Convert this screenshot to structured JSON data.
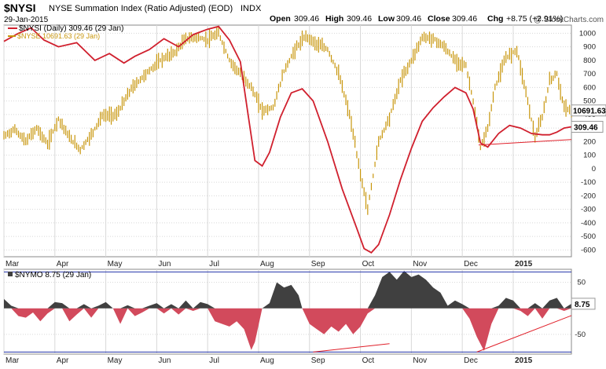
{
  "header": {
    "symbol": "$NYSI",
    "title": "NYSE Summation Index (Ratio Adjusted) (EOD)",
    "exchange": "INDX",
    "date": "29-Jan-2015",
    "watermark": "@ StockCharts.com",
    "quote": {
      "open_label": "Open",
      "open": "309.46",
      "high_label": "High",
      "high": "309.46",
      "low_label": "Low",
      "low": "309.46",
      "close_label": "Close",
      "close": "309.46",
      "chg_label": "Chg",
      "chg": "+8.75 (+2.91%)"
    }
  },
  "colors": {
    "nysi_line": "#d0202e",
    "nyse_bars": "#c8960c",
    "trendline": "#e0202a",
    "nymo_negative": "#d24a5c",
    "nymo_positive": "#404040",
    "band_line": "#2233aa",
    "grid": "#d8d8d8",
    "axis_text": "#222222"
  },
  "chart_data": [
    {
      "type": "line",
      "panel": "main",
      "legend": [
        {
          "label": "$NYSI (Daily) 309.46 (29 Jan)",
          "color": "#d0202e"
        },
        {
          "label": "$NYSE 10691.63 (29 Jan)",
          "color": "#c8960c"
        }
      ],
      "x_categories": [
        "Mar",
        "Apr",
        "May",
        "Jun",
        "Jul",
        "Aug",
        "Sep",
        "Oct",
        "Nov",
        "Dec",
        "2015"
      ],
      "y_ticks": [
        -600,
        -500,
        -400,
        -300,
        -200,
        -100,
        0,
        100,
        200,
        300,
        400,
        500,
        600,
        700,
        800,
        900,
        1000
      ],
      "ylim": [
        -650,
        1060
      ],
      "price_label": "10691.63",
      "price_label_value": 430,
      "value_label": "309.46",
      "value_label_value": 309.46,
      "nysi": [
        {
          "x": 0,
          "y": 940
        },
        {
          "x": 8,
          "y": 1000
        },
        {
          "x": 15,
          "y": 1040
        },
        {
          "x": 22,
          "y": 950
        },
        {
          "x": 30,
          "y": 900
        },
        {
          "x": 40,
          "y": 930
        },
        {
          "x": 50,
          "y": 800
        },
        {
          "x": 58,
          "y": 850
        },
        {
          "x": 66,
          "y": 780
        },
        {
          "x": 72,
          "y": 830
        },
        {
          "x": 80,
          "y": 880
        },
        {
          "x": 88,
          "y": 960
        },
        {
          "x": 96,
          "y": 900
        },
        {
          "x": 104,
          "y": 990
        },
        {
          "x": 112,
          "y": 1030
        },
        {
          "x": 118,
          "y": 1050
        },
        {
          "x": 124,
          "y": 950
        },
        {
          "x": 130,
          "y": 790
        },
        {
          "x": 134,
          "y": 420
        },
        {
          "x": 138,
          "y": 60
        },
        {
          "x": 142,
          "y": 20
        },
        {
          "x": 146,
          "y": 120
        },
        {
          "x": 152,
          "y": 380
        },
        {
          "x": 158,
          "y": 560
        },
        {
          "x": 164,
          "y": 590
        },
        {
          "x": 170,
          "y": 500
        },
        {
          "x": 178,
          "y": 200
        },
        {
          "x": 186,
          "y": -150
        },
        {
          "x": 194,
          "y": -440
        },
        {
          "x": 198,
          "y": -590
        },
        {
          "x": 202,
          "y": -620
        },
        {
          "x": 206,
          "y": -560
        },
        {
          "x": 212,
          "y": -340
        },
        {
          "x": 218,
          "y": -80
        },
        {
          "x": 224,
          "y": 150
        },
        {
          "x": 230,
          "y": 350
        },
        {
          "x": 236,
          "y": 450
        },
        {
          "x": 242,
          "y": 530
        },
        {
          "x": 248,
          "y": 600
        },
        {
          "x": 254,
          "y": 560
        },
        {
          "x": 258,
          "y": 440
        },
        {
          "x": 262,
          "y": 190
        },
        {
          "x": 266,
          "y": 160
        },
        {
          "x": 272,
          "y": 260
        },
        {
          "x": 278,
          "y": 320
        },
        {
          "x": 284,
          "y": 300
        },
        {
          "x": 290,
          "y": 260
        },
        {
          "x": 296,
          "y": 250
        },
        {
          "x": 300,
          "y": 250
        },
        {
          "x": 304,
          "y": 270
        },
        {
          "x": 308,
          "y": 300
        },
        {
          "x": 312,
          "y": 309.46
        }
      ],
      "nyse_trend": [
        {
          "x": 0,
          "y": 240
        },
        {
          "x": 6,
          "y": 290
        },
        {
          "x": 12,
          "y": 200
        },
        {
          "x": 18,
          "y": 300
        },
        {
          "x": 24,
          "y": 180
        },
        {
          "x": 30,
          "y": 370
        },
        {
          "x": 36,
          "y": 230
        },
        {
          "x": 42,
          "y": 140
        },
        {
          "x": 48,
          "y": 250
        },
        {
          "x": 54,
          "y": 390
        },
        {
          "x": 62,
          "y": 400
        },
        {
          "x": 70,
          "y": 590
        },
        {
          "x": 78,
          "y": 700
        },
        {
          "x": 86,
          "y": 800
        },
        {
          "x": 94,
          "y": 860
        },
        {
          "x": 100,
          "y": 960
        },
        {
          "x": 106,
          "y": 970
        },
        {
          "x": 112,
          "y": 950
        },
        {
          "x": 118,
          "y": 1000
        },
        {
          "x": 124,
          "y": 800
        },
        {
          "x": 130,
          "y": 700
        },
        {
          "x": 136,
          "y": 600
        },
        {
          "x": 142,
          "y": 430
        },
        {
          "x": 148,
          "y": 450
        },
        {
          "x": 154,
          "y": 720
        },
        {
          "x": 160,
          "y": 880
        },
        {
          "x": 166,
          "y": 980
        },
        {
          "x": 172,
          "y": 920
        },
        {
          "x": 178,
          "y": 880
        },
        {
          "x": 184,
          "y": 700
        },
        {
          "x": 190,
          "y": 400
        },
        {
          "x": 196,
          "y": -40
        },
        {
          "x": 200,
          "y": -300
        },
        {
          "x": 206,
          "y": 200
        },
        {
          "x": 212,
          "y": 380
        },
        {
          "x": 218,
          "y": 650
        },
        {
          "x": 224,
          "y": 800
        },
        {
          "x": 230,
          "y": 970
        },
        {
          "x": 236,
          "y": 960
        },
        {
          "x": 242,
          "y": 900
        },
        {
          "x": 248,
          "y": 800
        },
        {
          "x": 254,
          "y": 760
        },
        {
          "x": 258,
          "y": 500
        },
        {
          "x": 262,
          "y": 150
        },
        {
          "x": 266,
          "y": 300
        },
        {
          "x": 270,
          "y": 600
        },
        {
          "x": 276,
          "y": 820
        },
        {
          "x": 282,
          "y": 880
        },
        {
          "x": 288,
          "y": 500
        },
        {
          "x": 292,
          "y": 230
        },
        {
          "x": 296,
          "y": 380
        },
        {
          "x": 300,
          "y": 650
        },
        {
          "x": 304,
          "y": 700
        },
        {
          "x": 308,
          "y": 450
        },
        {
          "x": 312,
          "y": 430
        }
      ],
      "trendline": {
        "x1": 261,
        "y1": 175,
        "x2": 312,
        "y2": 215
      }
    },
    {
      "type": "area",
      "panel": "oscillator",
      "legend": [
        {
          "label": "$NYMO 8.75 (29 Jan)",
          "color": "#404040"
        }
      ],
      "y_ticks": [
        -50,
        50
      ],
      "ylim": [
        -88,
        75
      ],
      "band_upper": 70,
      "band_lower": -84,
      "value_label": "8.75",
      "nymo": [
        {
          "x": 0,
          "y": 18
        },
        {
          "x": 4,
          "y": 5
        },
        {
          "x": 8,
          "y": -15
        },
        {
          "x": 12,
          "y": -18
        },
        {
          "x": 16,
          "y": -8
        },
        {
          "x": 20,
          "y": -25
        },
        {
          "x": 24,
          "y": -10
        },
        {
          "x": 28,
          "y": 12
        },
        {
          "x": 32,
          "y": 10
        },
        {
          "x": 36,
          "y": -25
        },
        {
          "x": 40,
          "y": -12
        },
        {
          "x": 44,
          "y": 8
        },
        {
          "x": 48,
          "y": -18
        },
        {
          "x": 52,
          "y": 5
        },
        {
          "x": 56,
          "y": 12
        },
        {
          "x": 60,
          "y": 0
        },
        {
          "x": 64,
          "y": -30
        },
        {
          "x": 68,
          "y": 6
        },
        {
          "x": 72,
          "y": -15
        },
        {
          "x": 76,
          "y": -8
        },
        {
          "x": 80,
          "y": 5
        },
        {
          "x": 84,
          "y": 10
        },
        {
          "x": 88,
          "y": -10
        },
        {
          "x": 92,
          "y": 8
        },
        {
          "x": 96,
          "y": -12
        },
        {
          "x": 100,
          "y": 15
        },
        {
          "x": 104,
          "y": -5
        },
        {
          "x": 108,
          "y": 12
        },
        {
          "x": 112,
          "y": 8
        },
        {
          "x": 116,
          "y": -25
        },
        {
          "x": 120,
          "y": -30
        },
        {
          "x": 124,
          "y": -35
        },
        {
          "x": 128,
          "y": -25
        },
        {
          "x": 132,
          "y": -40
        },
        {
          "x": 136,
          "y": -80
        },
        {
          "x": 138,
          "y": -65
        },
        {
          "x": 142,
          "y": 0
        },
        {
          "x": 146,
          "y": 10
        },
        {
          "x": 150,
          "y": 50
        },
        {
          "x": 154,
          "y": 40
        },
        {
          "x": 158,
          "y": 45
        },
        {
          "x": 162,
          "y": 25
        },
        {
          "x": 164,
          "y": 0
        },
        {
          "x": 168,
          "y": -30
        },
        {
          "x": 172,
          "y": -40
        },
        {
          "x": 176,
          "y": -50
        },
        {
          "x": 180,
          "y": -35
        },
        {
          "x": 184,
          "y": -45
        },
        {
          "x": 188,
          "y": -30
        },
        {
          "x": 192,
          "y": -50
        },
        {
          "x": 196,
          "y": -35
        },
        {
          "x": 200,
          "y": -10
        },
        {
          "x": 204,
          "y": 25
        },
        {
          "x": 208,
          "y": 60
        },
        {
          "x": 212,
          "y": 70
        },
        {
          "x": 216,
          "y": 55
        },
        {
          "x": 220,
          "y": 72
        },
        {
          "x": 224,
          "y": 60
        },
        {
          "x": 228,
          "y": 65
        },
        {
          "x": 232,
          "y": 55
        },
        {
          "x": 236,
          "y": 40
        },
        {
          "x": 240,
          "y": 30
        },
        {
          "x": 244,
          "y": 5
        },
        {
          "x": 248,
          "y": 15
        },
        {
          "x": 252,
          "y": 8
        },
        {
          "x": 256,
          "y": -20
        },
        {
          "x": 260,
          "y": -55
        },
        {
          "x": 264,
          "y": -82
        },
        {
          "x": 268,
          "y": -30
        },
        {
          "x": 272,
          "y": 5
        },
        {
          "x": 276,
          "y": 20
        },
        {
          "x": 280,
          "y": 15
        },
        {
          "x": 284,
          "y": -5
        },
        {
          "x": 288,
          "y": -15
        },
        {
          "x": 292,
          "y": 10
        },
        {
          "x": 296,
          "y": -20
        },
        {
          "x": 300,
          "y": 15
        },
        {
          "x": 304,
          "y": 20
        },
        {
          "x": 308,
          "y": -5
        },
        {
          "x": 312,
          "y": 8.75
        }
      ],
      "trendlines": [
        {
          "x1": 170,
          "y1": -84,
          "x2": 212,
          "y2": -68
        },
        {
          "x1": 260,
          "y1": -84,
          "x2": 312,
          "y2": -14
        }
      ]
    }
  ]
}
